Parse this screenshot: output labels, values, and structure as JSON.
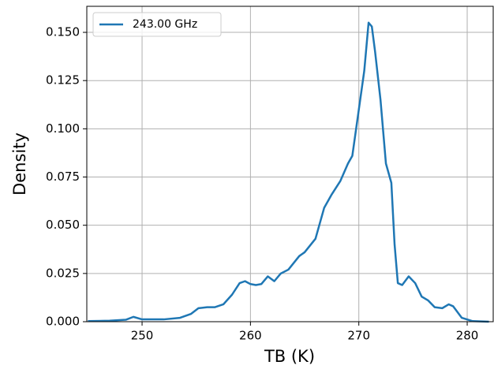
{
  "chart_data": {
    "type": "line",
    "xlabel": "TB (K)",
    "ylabel": "Density",
    "x": [
      245,
      247,
      248.5,
      249.2,
      250,
      252,
      253.5,
      254.5,
      255.2,
      256,
      256.7,
      257.5,
      258.3,
      259,
      259.5,
      260,
      260.5,
      261,
      261.6,
      262.2,
      262.8,
      263.5,
      264.5,
      265,
      266,
      266.8,
      267.5,
      268.3,
      269,
      269.4,
      270,
      270.5,
      270.9,
      271.2,
      271.5,
      272,
      272.5,
      273,
      273.3,
      273.6,
      274,
      274.6,
      275.2,
      275.8,
      276.4,
      277,
      277.7,
      278.3,
      278.7,
      279.5,
      280.5,
      282
    ],
    "series": [
      {
        "name": "243.00 GHz",
        "color": "#1f77b4",
        "values": [
          0.0003,
          0.0005,
          0.001,
          0.0025,
          0.0012,
          0.0012,
          0.002,
          0.004,
          0.007,
          0.0075,
          0.0075,
          0.009,
          0.014,
          0.02,
          0.021,
          0.0195,
          0.019,
          0.0195,
          0.0235,
          0.021,
          0.025,
          0.027,
          0.034,
          0.036,
          0.043,
          0.059,
          0.066,
          0.073,
          0.082,
          0.086,
          0.11,
          0.13,
          0.155,
          0.153,
          0.14,
          0.115,
          0.082,
          0.072,
          0.04,
          0.02,
          0.019,
          0.0235,
          0.02,
          0.013,
          0.011,
          0.0075,
          0.007,
          0.009,
          0.008,
          0.002,
          0.0003,
          0
        ]
      }
    ],
    "xlim": [
      244.9,
      282.4
    ],
    "ylim": [
      0,
      0.1635
    ],
    "xticks": [
      250,
      260,
      270,
      280
    ],
    "yticks": [
      {
        "value": 0,
        "label": "0.000"
      },
      {
        "value": 0.025,
        "label": "0.025"
      },
      {
        "value": 0.05,
        "label": "0.050"
      },
      {
        "value": 0.075,
        "label": "0.075"
      },
      {
        "value": 0.1,
        "label": "0.100"
      },
      {
        "value": 0.125,
        "label": "0.125"
      },
      {
        "value": 0.15,
        "label": "0.150"
      }
    ],
    "grid": true,
    "legend": "upper left"
  }
}
